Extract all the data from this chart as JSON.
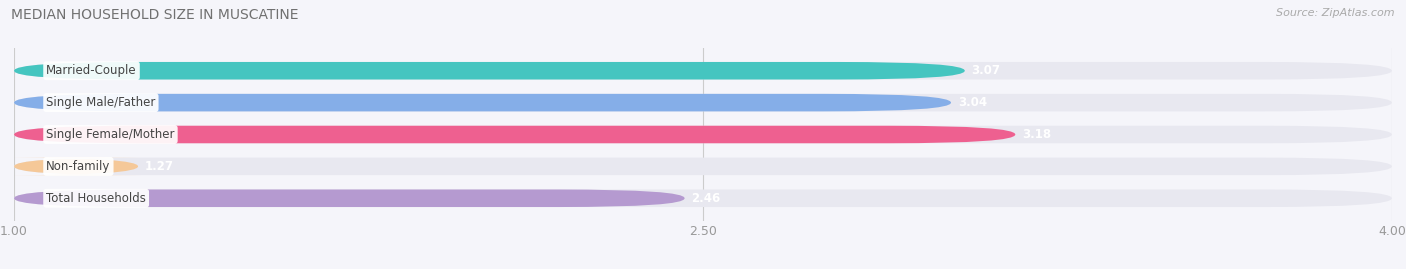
{
  "title": "MEDIAN HOUSEHOLD SIZE IN MUSCATINE",
  "source": "Source: ZipAtlas.com",
  "categories": [
    "Married-Couple",
    "Single Male/Father",
    "Single Female/Mother",
    "Non-family",
    "Total Households"
  ],
  "values": [
    3.07,
    3.04,
    3.18,
    1.27,
    2.46
  ],
  "bar_colors": [
    "#45c5c0",
    "#85aee8",
    "#ee6090",
    "#f5c898",
    "#b59ad0"
  ],
  "background_color": "#f5f5fa",
  "bar_background_color": "#e8e8f0",
  "xlim": [
    1.0,
    4.0
  ],
  "xticks": [
    1.0,
    2.5,
    4.0
  ],
  "xtick_labels": [
    "1.00",
    "2.50",
    "4.00"
  ],
  "xlabel_fontsize": 9,
  "title_fontsize": 10,
  "value_fontsize": 8.5,
  "label_fontsize": 8.5
}
